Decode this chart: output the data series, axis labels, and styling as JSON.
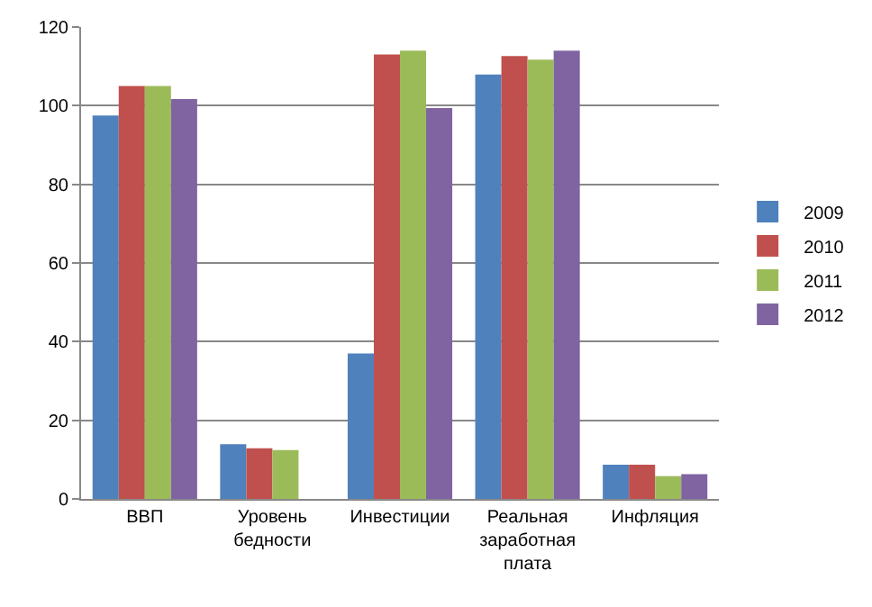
{
  "chart_data": {
    "type": "bar",
    "categories": [
      "ВВП",
      "Уровень\nбедности",
      "Инвестиции",
      "Реальная\nзаработная\nплата",
      "Инфляция"
    ],
    "series": [
      {
        "name": "2009",
        "color": "#4f81bd",
        "values": [
          97.5,
          13.9,
          37,
          107.9,
          8.7
        ]
      },
      {
        "name": "2010",
        "color": "#c0504d",
        "values": [
          105,
          12.9,
          113,
          112.6,
          8.7
        ]
      },
      {
        "name": "2011",
        "color": "#9bbb59",
        "values": [
          105,
          12.4,
          114,
          111.7,
          5.8
        ]
      },
      {
        "name": "2012",
        "color": "#8064a2",
        "values": [
          101.7,
          null,
          99.4,
          114,
          6.3
        ]
      }
    ],
    "ylim": [
      0,
      120
    ],
    "yticks": [
      0,
      20,
      40,
      60,
      80,
      100,
      120
    ],
    "grid": "y",
    "legend": "right"
  }
}
